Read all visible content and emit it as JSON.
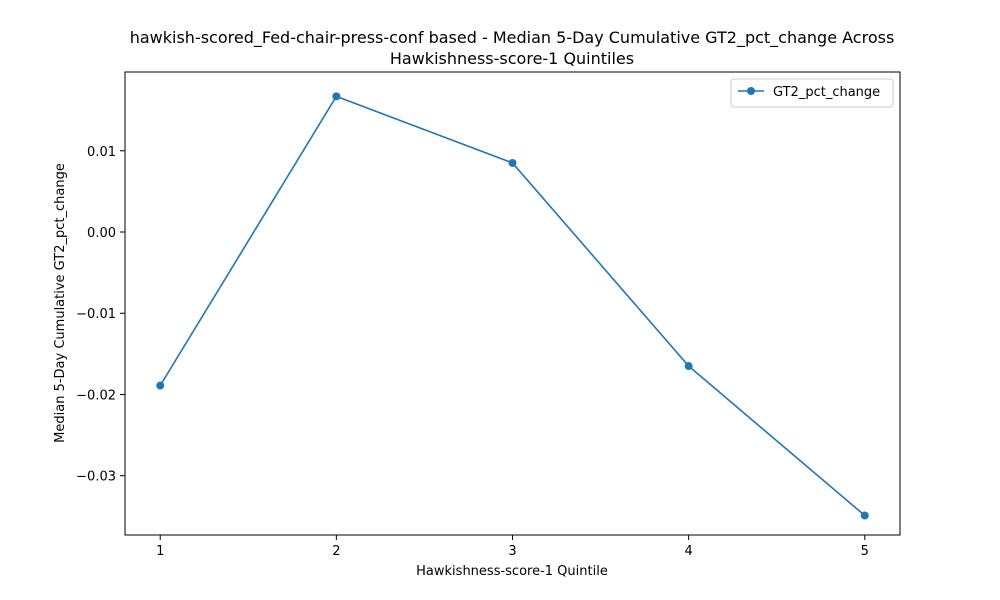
{
  "chart_data": {
    "type": "line",
    "title_line1": "hawkish-scored_Fed-chair-press-conf based - Median 5-Day Cumulative GT2_pct_change Across",
    "title_line2": "Hawkishness-score-1 Quintiles",
    "xlabel": "Hawkishness-score-1 Quintile",
    "ylabel": "Median 5-Day Cumulative GT2_pct_change",
    "x": [
      1,
      2,
      3,
      4,
      5
    ],
    "x_ticks": [
      "1",
      "2",
      "3",
      "4",
      "5"
    ],
    "y_ticks": [
      0.01,
      0.0,
      -0.01,
      -0.02,
      -0.03
    ],
    "y_tick_labels": [
      "0.01",
      "0.00",
      "−0.01",
      "−0.02",
      "−0.03"
    ],
    "xlim": [
      0.8,
      5.2
    ],
    "ylim": [
      -0.0373,
      0.0197
    ],
    "series": [
      {
        "name": "GT2_pct_change",
        "color": "#1f77b4",
        "marker": "circle",
        "values": [
          -0.0189,
          0.0167,
          0.0085,
          -0.0165,
          -0.0349
        ]
      }
    ],
    "legend_position": "upper right",
    "grid": false
  }
}
